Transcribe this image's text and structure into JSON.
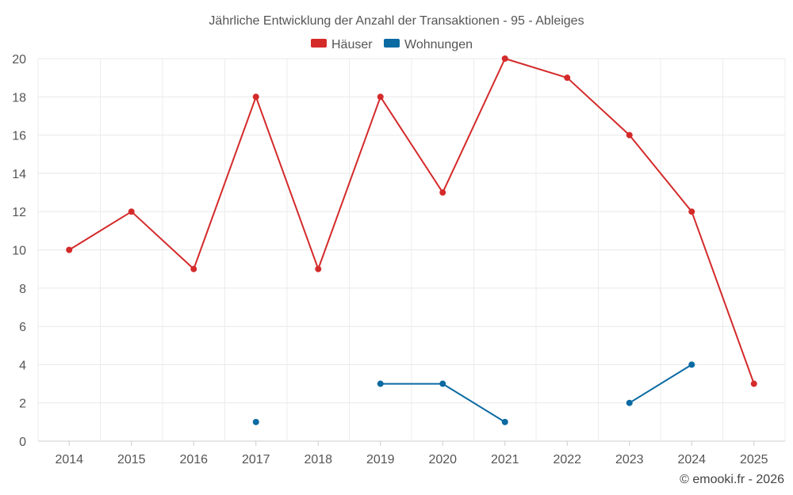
{
  "chart_data": {
    "type": "line",
    "title": "Jährliche Entwicklung der Anzahl der Transaktionen - 95 - Ableiges",
    "categories": [
      "2014",
      "2015",
      "2016",
      "2017",
      "2018",
      "2019",
      "2020",
      "2021",
      "2022",
      "2023",
      "2024",
      "2025"
    ],
    "series": [
      {
        "name": "Häuser",
        "color": "#d42a2a",
        "values": [
          10,
          12,
          9,
          18,
          9,
          18,
          13,
          20,
          19,
          16,
          12,
          3
        ]
      },
      {
        "name": "Wohnungen",
        "color": "#0b6aa2",
        "values": [
          null,
          null,
          null,
          1,
          null,
          3,
          3,
          1,
          null,
          2,
          4,
          null
        ]
      }
    ],
    "ylim": [
      0,
      20
    ],
    "yticks": [
      0,
      2,
      4,
      6,
      8,
      10,
      12,
      14,
      16,
      18,
      20
    ],
    "xlabel": "",
    "ylabel": "",
    "grid": true,
    "legend": "top-center"
  },
  "credit": "© emooki.fr - 2026"
}
